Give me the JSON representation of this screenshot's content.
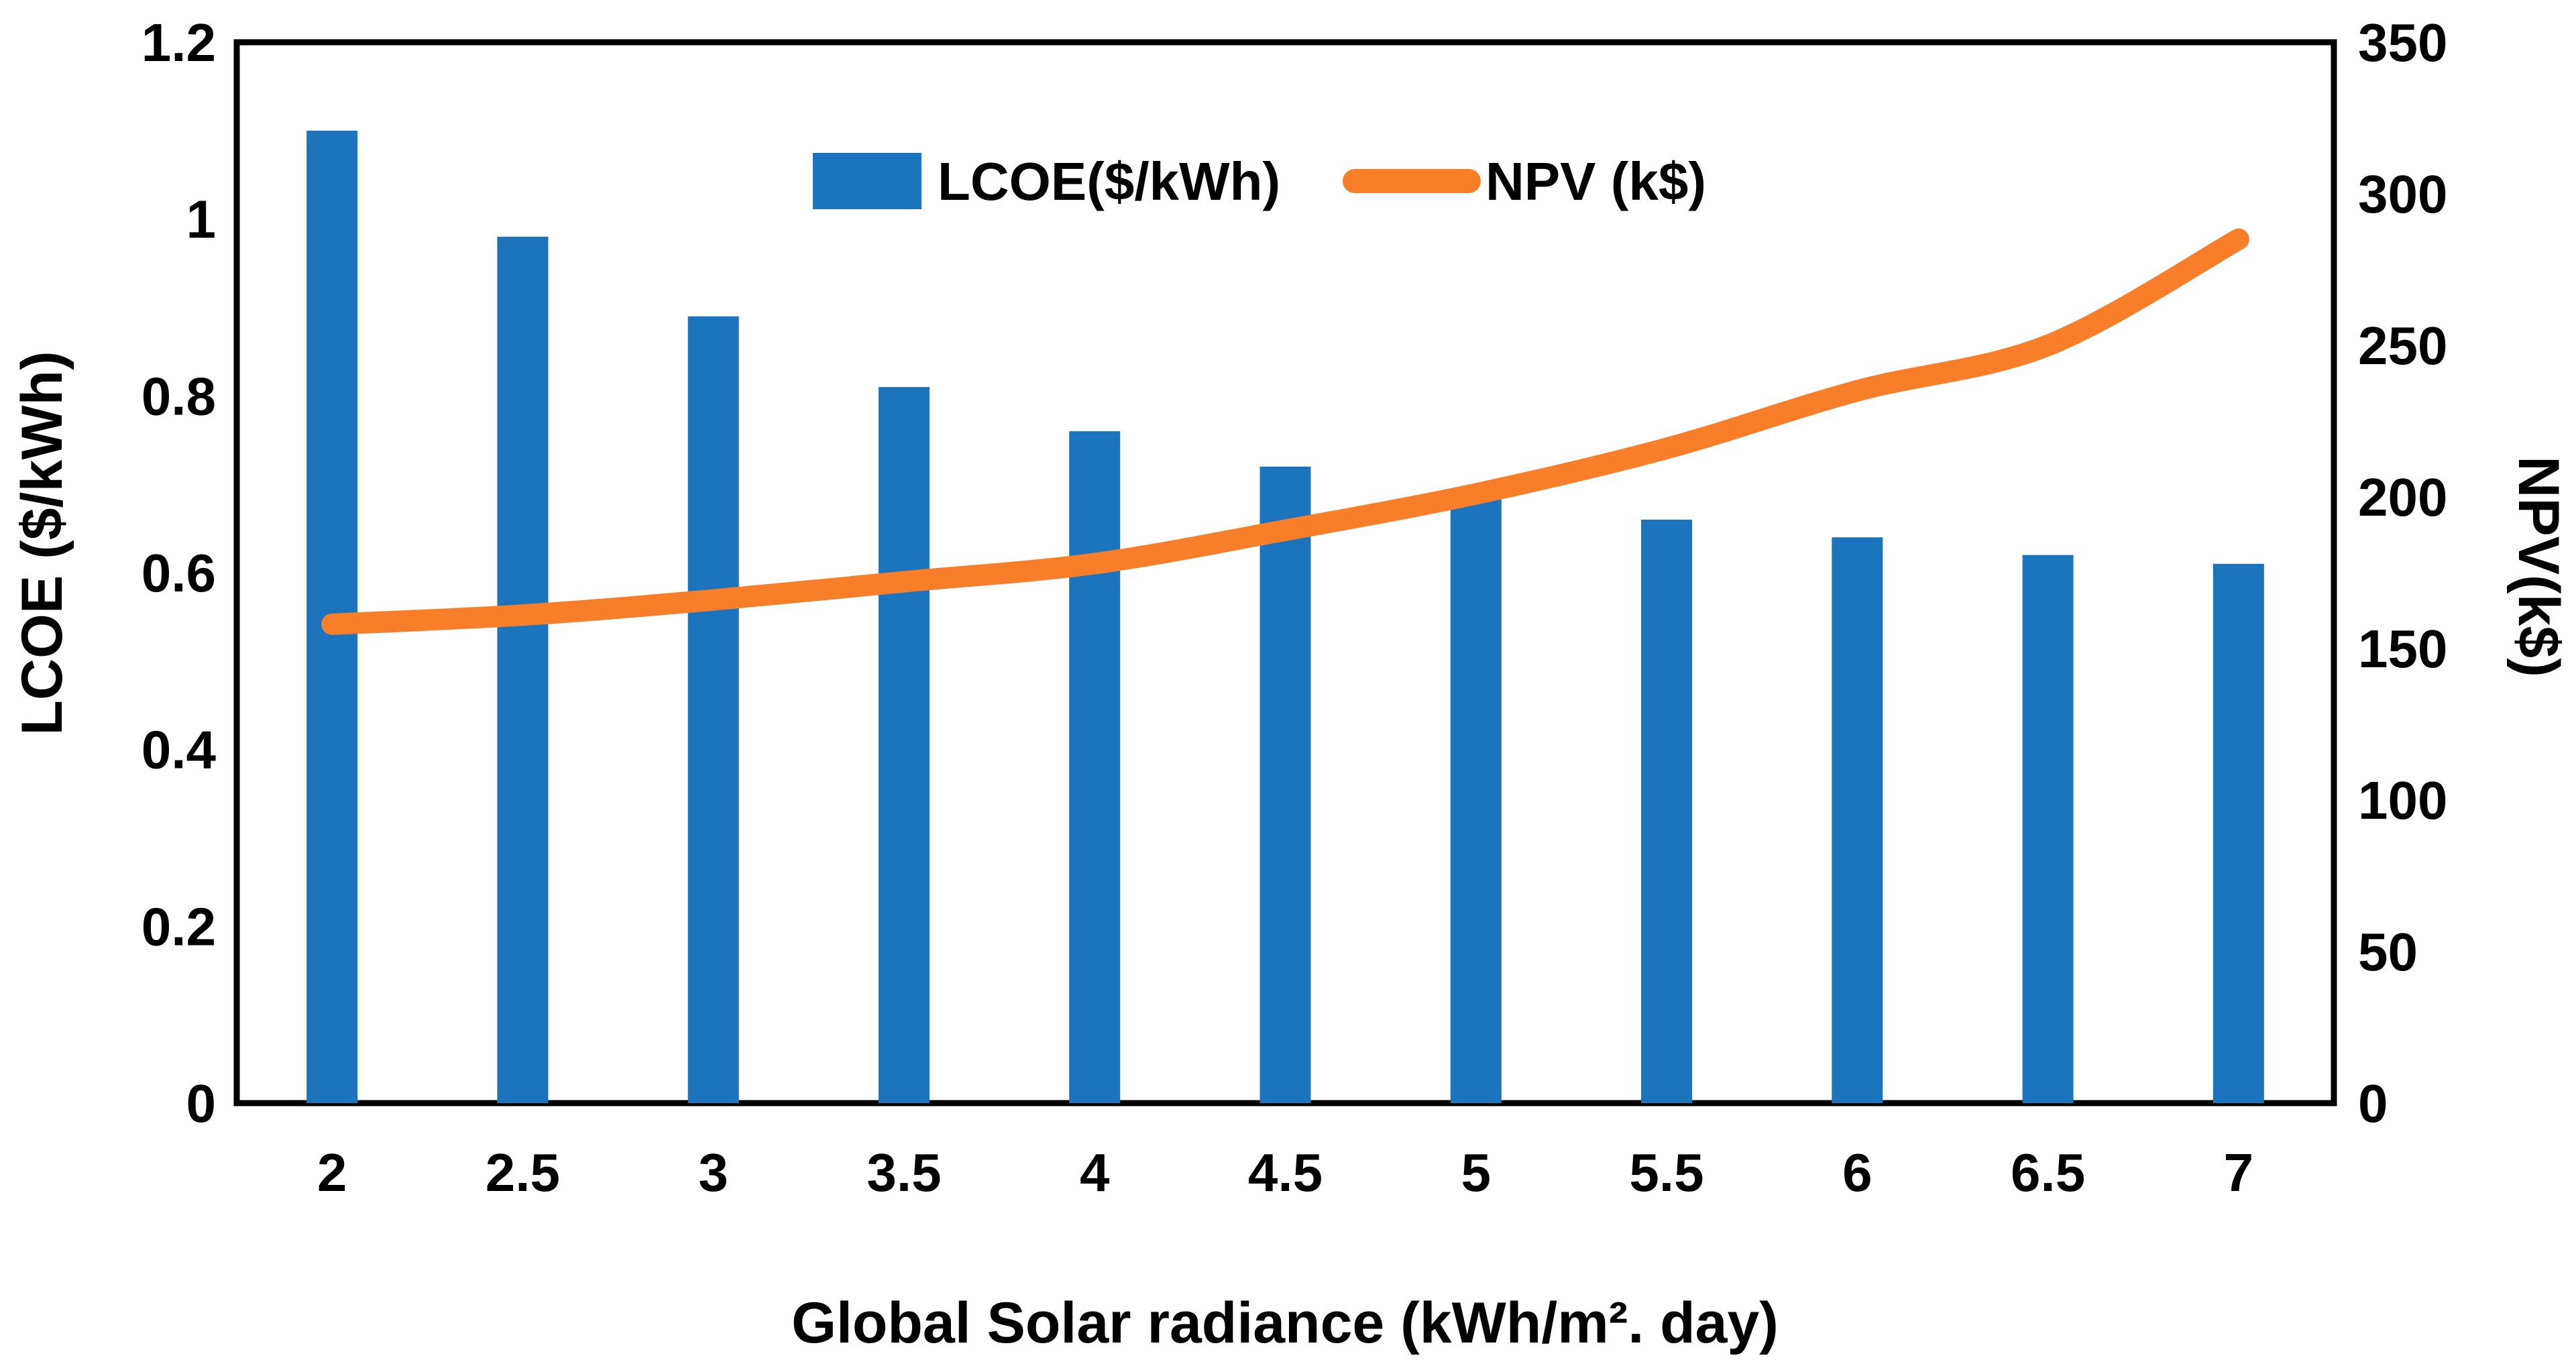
{
  "chart_data": {
    "type": "bar",
    "subtype": "combo-bar-line-dual-axis",
    "categories": [
      "2",
      "2.5",
      "3",
      "3.5",
      "4",
      "4.5",
      "5",
      "5.5",
      "6",
      "6.5",
      "7"
    ],
    "series": [
      {
        "name": "LCOE($/kWh)",
        "type": "bar",
        "axis": "left",
        "color": "#1C75BC",
        "values": [
          1.1,
          0.98,
          0.89,
          0.81,
          0.76,
          0.72,
          0.69,
          0.66,
          0.64,
          0.62,
          0.61
        ]
      },
      {
        "name": "NPV (k$)",
        "type": "line",
        "axis": "right",
        "color": "#F87E2A",
        "smooth": true,
        "values": [
          158,
          161,
          166,
          172,
          178,
          189,
          201,
          216,
          235,
          250,
          285
        ]
      }
    ],
    "left_axis": {
      "title": "LCOE ($/kWh)",
      "min": 0,
      "max": 1.2,
      "tick_labels": [
        "0",
        "0.2",
        "0.4",
        "0.6",
        "0.8",
        "1",
        "1.2"
      ],
      "tick_values": [
        0,
        0.2,
        0.4,
        0.6,
        0.8,
        1,
        1.2
      ]
    },
    "right_axis": {
      "title": "NPV(k$)",
      "min": 0,
      "max": 350,
      "tick_labels": [
        "0",
        "50",
        "100",
        "150",
        "200",
        "250",
        "300",
        "350"
      ],
      "tick_values": [
        0,
        50,
        100,
        150,
        200,
        250,
        300,
        350
      ]
    },
    "x_axis": {
      "title": "Global Solar radiance (kWh/m². day)"
    },
    "legend_position": "top-center",
    "grid": false,
    "plot_border_color": "#000000",
    "background_color": "#FFFFFF"
  }
}
